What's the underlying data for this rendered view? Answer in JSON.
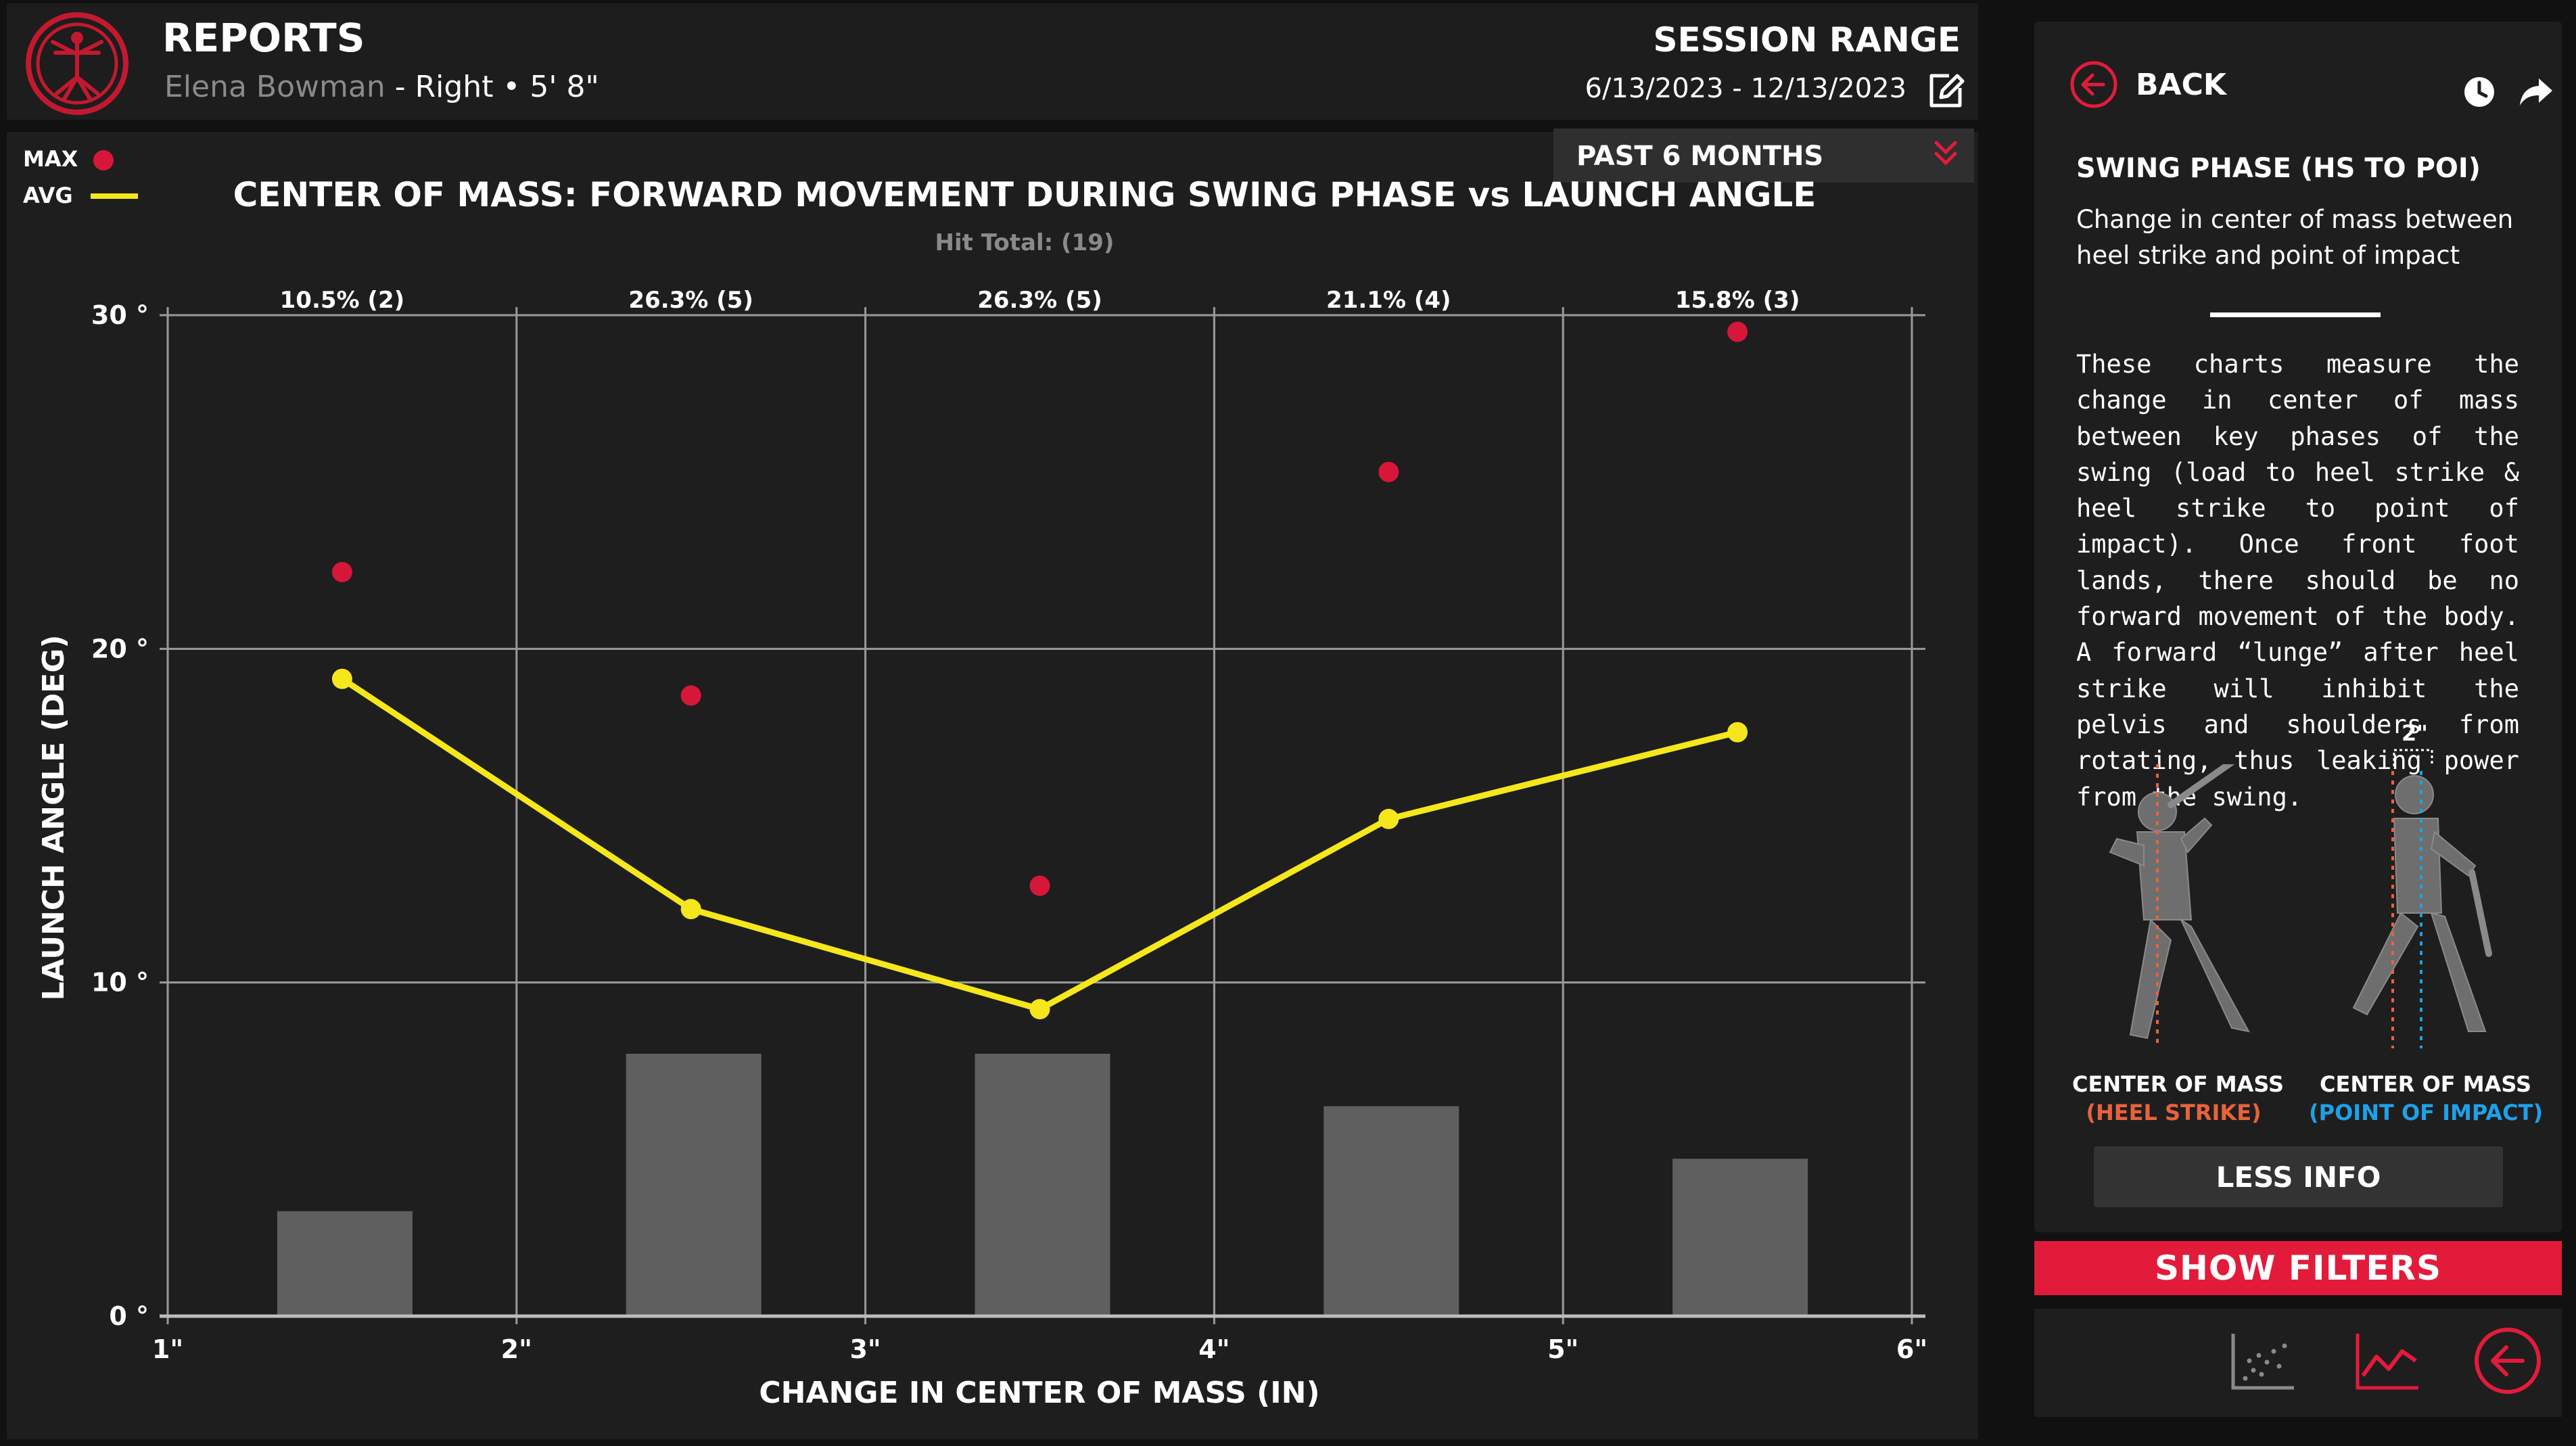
{
  "header": {
    "title": "REPORTS",
    "player_name": "Elena Bowman",
    "player_info": " - Right • 5' 8\"",
    "session_label": "SESSION RANGE",
    "session_dates": "6/13/2023 - 12/13/2023",
    "icons": {
      "logo": "vitruvian-logo",
      "edit": "edit-icon"
    }
  },
  "range_dropdown": {
    "selected": "PAST 6 MONTHS",
    "icon": "chevron-down-double-icon"
  },
  "legend": {
    "max_label": "MAX",
    "avg_label": "AVG",
    "max_color": "#d6173a",
    "avg_color": "#f5e71b"
  },
  "bar_color": "#5f5f5f",
  "chart_data": {
    "type": "bar+line+scatter",
    "title": "CENTER OF MASS: FORWARD MOVEMENT DURING SWING PHASE vs LAUNCH ANGLE",
    "subtitle": "Hit Total: (19)",
    "xlabel": "CHANGE IN CENTER OF MASS (IN)",
    "ylabel": "LAUNCH ANGLE (DEG)",
    "xlim": [
      1,
      6
    ],
    "ylim": [
      0,
      30
    ],
    "x_ticks": [
      "1\"",
      "2\"",
      "3\"",
      "4\"",
      "5\"",
      "6\""
    ],
    "y_ticks": [
      "0 °",
      "10 °",
      "20 °",
      "30 °"
    ],
    "grid": true,
    "bins": [
      1.5,
      2.5,
      3.5,
      4.5,
      5.5
    ],
    "bin_labels": [
      "10.5% (2)",
      "26.3% (5)",
      "26.3% (5)",
      "21.1% (4)",
      "15.8% (3)"
    ],
    "hit_counts": [
      2,
      5,
      5,
      4,
      3
    ],
    "series": [
      {
        "name": "MAX",
        "type": "scatter",
        "values": [
          22.3,
          18.6,
          12.9,
          25.3,
          29.5
        ]
      },
      {
        "name": "AVG",
        "type": "line",
        "values": [
          19.1,
          12.2,
          9.2,
          14.9,
          17.5
        ]
      }
    ]
  },
  "side": {
    "back_label": "BACK",
    "icons": {
      "back": "back-arrow-circle-icon",
      "history": "clock-icon",
      "share": "share-arrow-icon"
    },
    "swing_title": "SWING PHASE (HS TO POI)",
    "swing_subtitle": "Change in center of mass between heel strike and point of impact",
    "description": "These charts measure the change in center of mass between key phases of the swing (load to heel strike & heel strike to point of impact). Once front foot lands, there should be no forward movement of the body. A forward “lunge” after heel strike will inhibit the pelvis and shoulders from rotating, thus leaking power from the swing.",
    "offset_label": "2\"",
    "fig1_label_1": "CENTER OF MASS",
    "fig1_label_2": "(HEEL STRIKE)",
    "fig2_label_1": "CENTER OF MASS",
    "fig2_label_2": "(POINT OF IMPACT)",
    "heel_color": "#e8623c",
    "impact_color": "#1fa0e8",
    "less_info": "LESS INFO",
    "show_filters": "SHOW FILTERS",
    "bottom_icons": [
      "scatter-plot-icon",
      "line-chart-icon",
      "back-arrow-circle-icon"
    ]
  }
}
